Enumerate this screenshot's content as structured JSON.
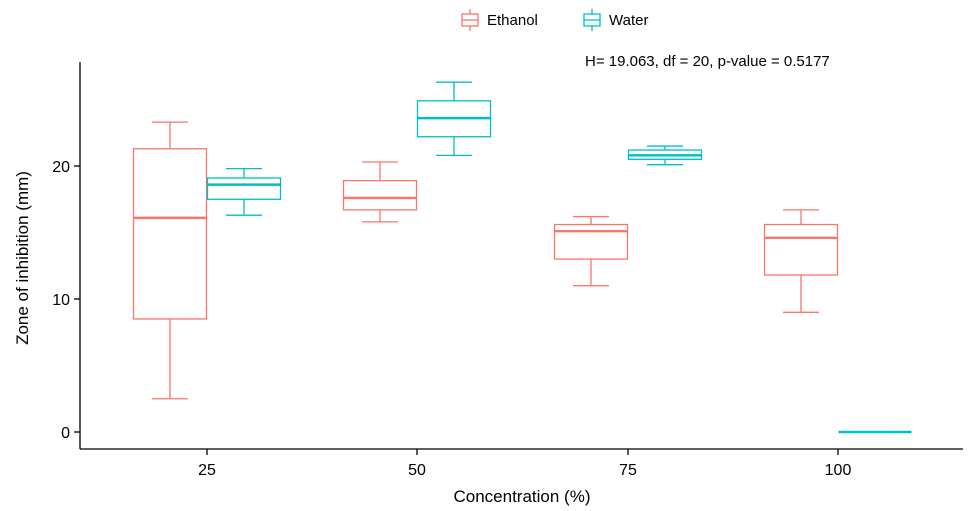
{
  "chart_data": {
    "type": "boxplot",
    "xlabel": "Concentration (%)",
    "ylabel": "Zone of inhibition (mm)",
    "categories": [
      "25",
      "50",
      "75",
      "100"
    ],
    "ylim": [
      -1,
      27.5
    ],
    "yticks": [
      0,
      10,
      20
    ],
    "grid": false,
    "legend_position": "top",
    "annotation": "H= 19.063, df = 20, p-value = 0.5177",
    "series": [
      {
        "name": "Ethanol",
        "color": "#F8766D",
        "boxes": [
          {
            "category": "25",
            "min": 2.5,
            "q1": 8.5,
            "median": 16.1,
            "q3": 21.3,
            "max": 23.3
          },
          {
            "category": "50",
            "min": 15.8,
            "q1": 16.7,
            "median": 17.6,
            "q3": 18.9,
            "max": 20.3
          },
          {
            "category": "75",
            "min": 11.0,
            "q1": 13.0,
            "median": 15.1,
            "q3": 15.6,
            "max": 16.2
          },
          {
            "category": "100",
            "min": 9.0,
            "q1": 11.8,
            "median": 14.6,
            "q3": 15.6,
            "max": 16.7
          }
        ]
      },
      {
        "name": "Water",
        "color": "#00BFC4",
        "boxes": [
          {
            "category": "25",
            "min": 16.3,
            "q1": 17.5,
            "median": 18.6,
            "q3": 19.1,
            "max": 19.8
          },
          {
            "category": "50",
            "min": 20.8,
            "q1": 22.2,
            "median": 23.6,
            "q3": 24.9,
            "max": 26.3
          },
          {
            "category": "75",
            "min": 20.1,
            "q1": 20.5,
            "median": 20.8,
            "q3": 21.2,
            "max": 21.5
          },
          {
            "category": "100",
            "min": 0,
            "q1": 0,
            "median": 0,
            "q3": 0,
            "max": 0
          }
        ]
      }
    ]
  }
}
